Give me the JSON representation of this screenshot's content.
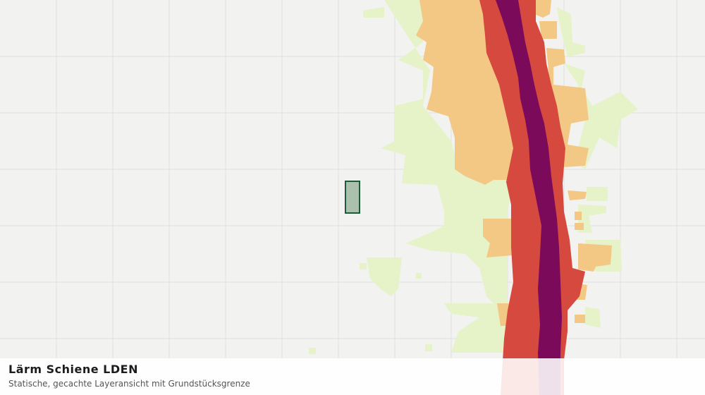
{
  "map": {
    "title": "Lärm Schiene LDEN",
    "subtitle": "Statische, gecachte Layeransicht mit Grundstücksgrenze"
  }
}
